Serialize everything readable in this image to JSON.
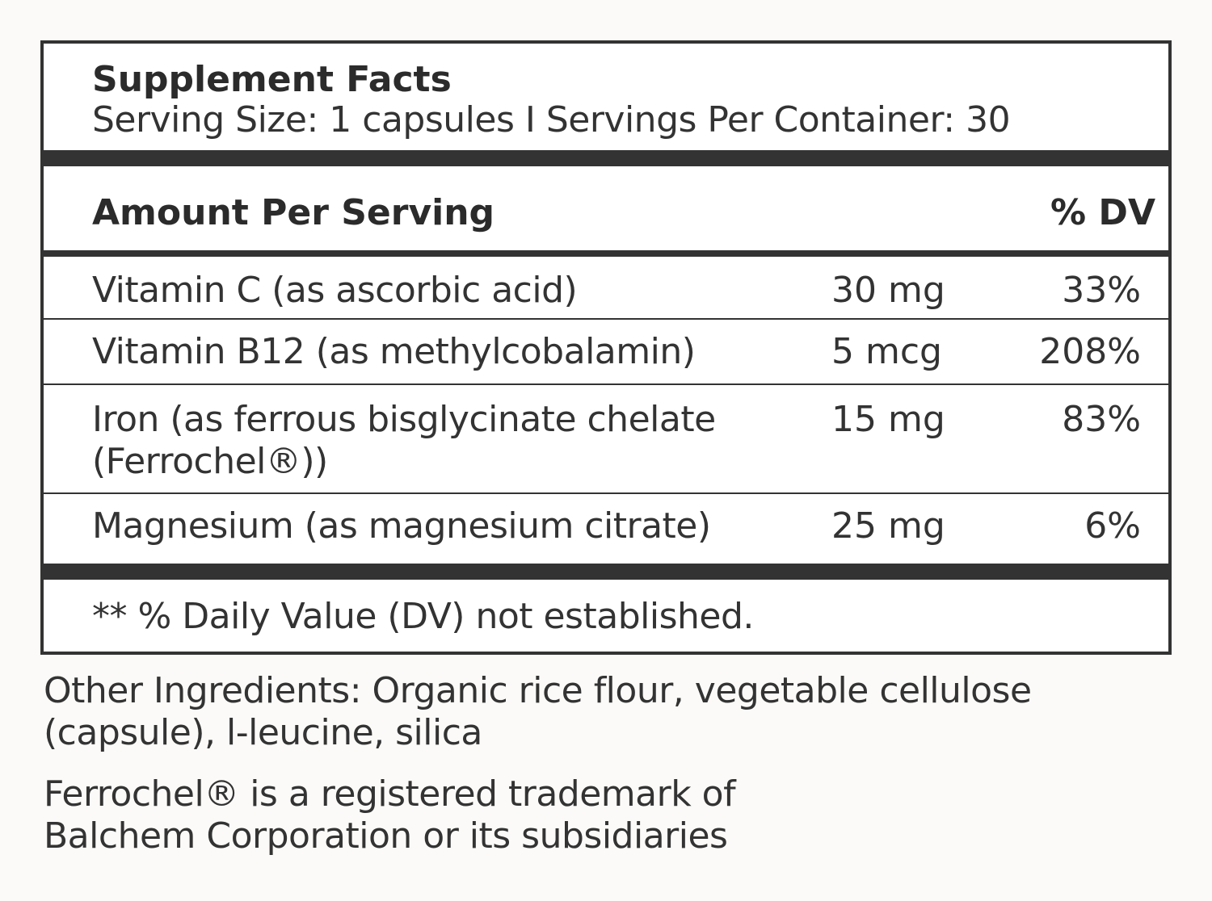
{
  "label": {
    "title": "Supplement Facts",
    "serving_line": "Serving Size: 1 capsules I  Servings Per Container: 30",
    "amount_header": "Amount Per Serving",
    "dv_header": "% DV",
    "nutrients": [
      {
        "name": "Vitamin C (as ascorbic acid)",
        "amount": "30 mg",
        "dv": "33%"
      },
      {
        "name": "Vitamin B12 (as methylcobalamin)",
        "amount": "5 mcg",
        "dv": "208%"
      },
      {
        "name": "Iron (as ferrous bisglycinate chelate (Ferrochel®))",
        "amount": "15 mg",
        "dv": "83%"
      },
      {
        "name": "Magnesium (as magnesium citrate)",
        "amount": "25 mg",
        "dv": "6%"
      }
    ],
    "footnote": "** % Daily Value (DV) not established."
  },
  "other_ingredients": "Other Ingredients: Organic rice flour, vegetable cellulose (capsule), l-leucine, silica",
  "trademark_note": "Ferrochel® is a registered trademark of Balchem Corporation or its subsidiaries",
  "colors": {
    "ink": "#333333",
    "background": "#fbfaf8"
  }
}
